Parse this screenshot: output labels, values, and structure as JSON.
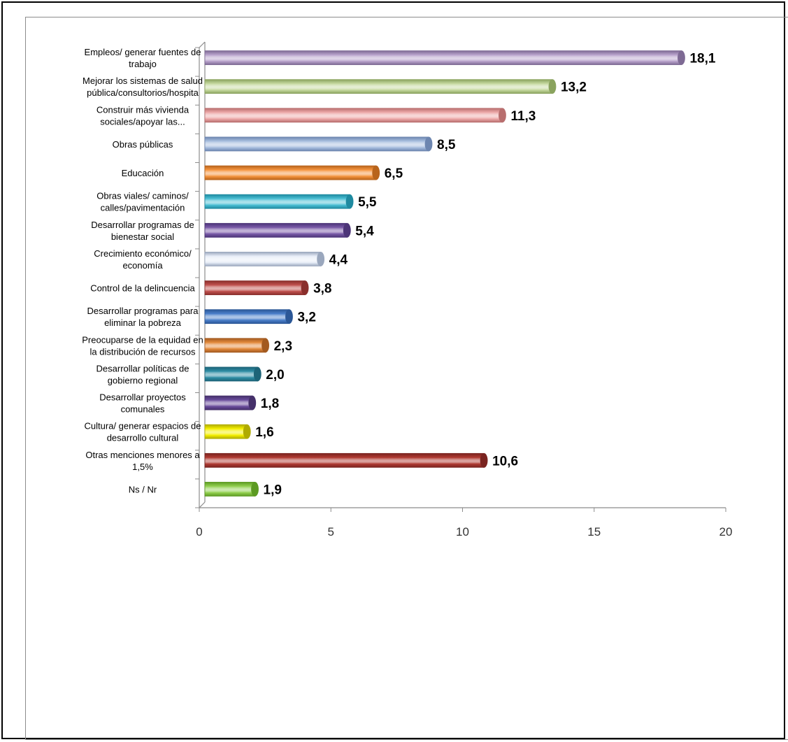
{
  "chart_data": {
    "type": "bar",
    "orientation": "horizontal",
    "title": "",
    "xlabel": "",
    "ylabel": "",
    "xlim": [
      0,
      20
    ],
    "x_ticks": [
      0,
      5,
      10,
      15,
      20
    ],
    "grid": false,
    "legend": "none",
    "categories": [
      [
        "Empleos/ generar fuentes de",
        "trabajo"
      ],
      [
        "Mejorar los sistemas de salud",
        "pública/consultorios/hospita"
      ],
      [
        "Construir más vivienda",
        "sociales/apoyar las..."
      ],
      [
        "Obras públicas"
      ],
      [
        "Educación"
      ],
      [
        "Obras viales/ caminos/",
        "calles/pavimentación"
      ],
      [
        "Desarrollar programas de",
        "bienestar social"
      ],
      [
        "Crecimiento económico/",
        "economía"
      ],
      [
        "Control de la delincuencia"
      ],
      [
        "Desarrollar programas para",
        "eliminar la pobreza"
      ],
      [
        "Preocuparse de la equidad en",
        "la distribución de recursos"
      ],
      [
        "Desarrollar políticas de",
        "gobierno regional"
      ],
      [
        "Desarrollar proyectos",
        "comunales"
      ],
      [
        "Cultura/ generar espacios de",
        "desarrollo cultural"
      ],
      [
        "Otras menciones menores a",
        "1,5%"
      ],
      [
        "Ns / Nr"
      ]
    ],
    "values": [
      18.1,
      13.2,
      11.3,
      8.5,
      6.5,
      5.5,
      5.4,
      4.4,
      3.8,
      3.2,
      2.3,
      2.0,
      1.8,
      1.6,
      10.6,
      1.9
    ],
    "value_labels": [
      "18,1",
      "13,2",
      "11,3",
      "8,5",
      "6,5",
      "5,5",
      "5,4",
      "4,4",
      "3,8",
      "3,2",
      "2,3",
      "2,0",
      "1,8",
      "1,6",
      "10,6",
      "1,9"
    ],
    "colors": [
      "#b9a3cc",
      "#c6d9a0",
      "#eeaaaa",
      "#a9bfe0",
      "#f6953f",
      "#4bbfd4",
      "#7a5aa8",
      "#e8eef8",
      "#c0504d",
      "#4a7fca",
      "#e48a3c",
      "#2e8da5",
      "#6a4c9c",
      "#f5f000",
      "#b03a32",
      "#92d050"
    ],
    "edge_colors": [
      "#7e6a94",
      "#8aa35e",
      "#b86e6e",
      "#6d86b0",
      "#b8641c",
      "#1e8aa0",
      "#4d3578",
      "#9aa7bd",
      "#8a2f2c",
      "#2b5797",
      "#a35a20",
      "#1d6478",
      "#45306a",
      "#b0ab00",
      "#7a2420",
      "#5c9a22"
    ]
  }
}
